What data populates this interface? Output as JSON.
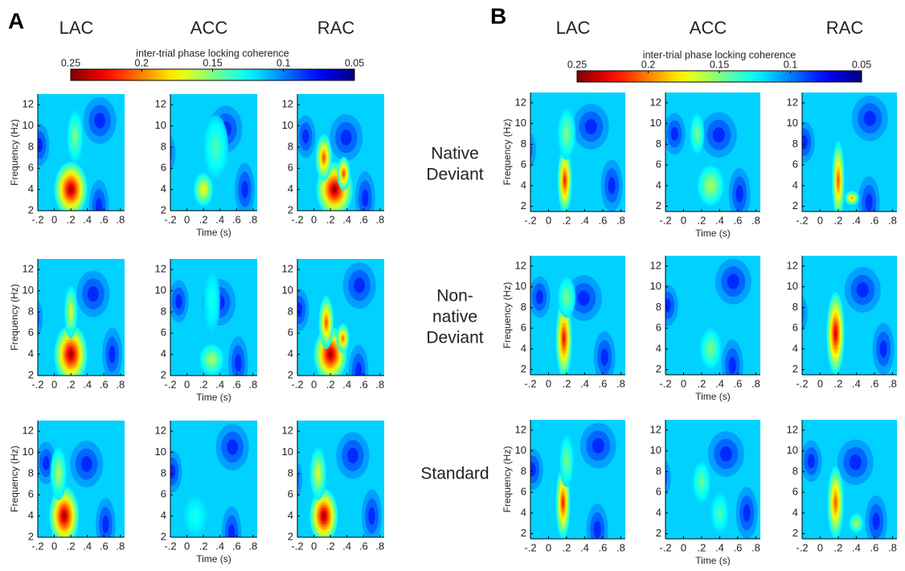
{
  "chart_data": [
    {
      "type": "heatmap",
      "panel_label": "A",
      "columns": [
        "LAC",
        "ACC",
        "RAC"
      ],
      "colorbar": {
        "label": "inter-trial phase locking coherence",
        "lim": [
          0.25,
          0.05
        ],
        "ticks": [
          0.25,
          0.2,
          0.15,
          0.1,
          0.05
        ]
      },
      "xlabel": "Time (s)",
      "ylabel": "Frequency (Hz)",
      "xlim": [
        -0.2,
        0.85
      ],
      "ylim": [
        2,
        13
      ],
      "xticks": [
        {
          "value": -0.2,
          "label": "-.2"
        },
        0,
        {
          "value": 0.2,
          "label": ".2"
        },
        {
          "value": 0.4,
          "label": ".4"
        },
        {
          "value": 0.6,
          "label": ".6"
        },
        {
          "value": 0.8,
          "label": ".8"
        }
      ],
      "yticks": [
        2,
        4,
        6,
        8,
        10,
        12
      ]
    },
    {
      "type": "heatmap",
      "panel_label": "B",
      "columns": [
        "LAC",
        "ACC",
        "RAC"
      ],
      "colorbar": {
        "label": "inter-trial phase locking coherence",
        "lim": [
          0.25,
          0.05
        ],
        "ticks": [
          0.25,
          0.2,
          0.15,
          0.1,
          0.05
        ]
      },
      "xlabel": "Time (s)",
      "ylabel": "Frequency (Hz)",
      "xlim": [
        -0.2,
        0.85
      ],
      "ylim": [
        1.5,
        13
      ],
      "xticks": [
        {
          "value": -0.2,
          "label": "-.2"
        },
        0,
        {
          "value": 0.2,
          "label": ".2"
        },
        {
          "value": 0.4,
          "label": ".4"
        },
        {
          "value": 0.6,
          "label": ".6"
        },
        {
          "value": 0.8,
          "label": ".8"
        }
      ],
      "yticks": [
        2,
        4,
        6,
        8,
        10,
        12
      ]
    }
  ],
  "row_labels": [
    [
      "Native",
      "Deviant"
    ],
    [
      "Non-",
      "native",
      "Deviant"
    ],
    [
      "Standard"
    ]
  ]
}
